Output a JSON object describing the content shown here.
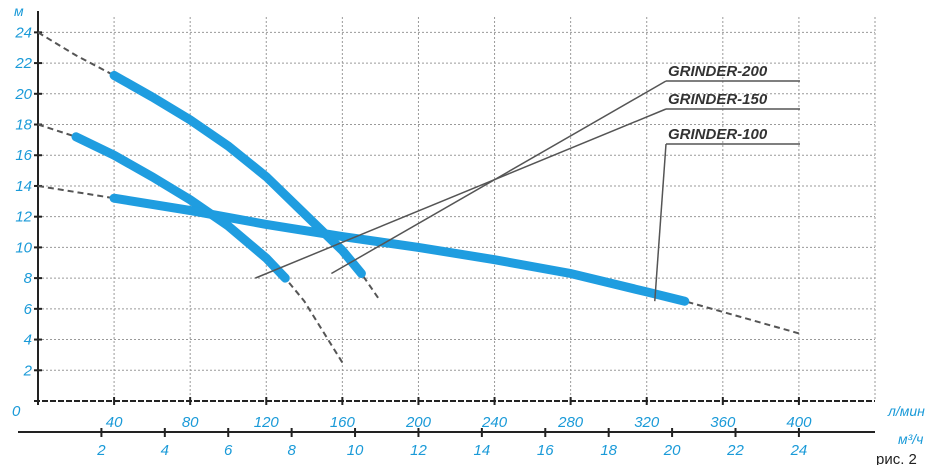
{
  "chart_data": {
    "type": "line",
    "ylabel": "м",
    "xlabel_lmin": "л/мин",
    "xlabel_m3h": "м³/ч",
    "origin_label": "0",
    "figure_caption": "рис. 2",
    "ylim": [
      0,
      25
    ],
    "x_lmin_range": [
      0,
      440
    ],
    "y_ticks": [
      2,
      4,
      6,
      8,
      10,
      12,
      14,
      16,
      18,
      20,
      22,
      24
    ],
    "x_lmin_ticks": [
      40,
      80,
      120,
      160,
      200,
      240,
      280,
      320,
      360,
      400
    ],
    "x_m3h_ticks": [
      2,
      4,
      6,
      8,
      10,
      12,
      14,
      16,
      18,
      20,
      22,
      24
    ],
    "grid": true,
    "series": [
      {
        "name": "GRINDER-200",
        "x": [
          0,
          20,
          40,
          60,
          80,
          100,
          120,
          140,
          160,
          170,
          180
        ],
        "y": [
          24,
          22.5,
          21.2,
          19.8,
          18.3,
          16.6,
          14.6,
          12.2,
          9.8,
          8.3,
          6.5
        ],
        "operating_range": [
          40,
          170
        ]
      },
      {
        "name": "GRINDER-150",
        "x": [
          0,
          20,
          40,
          60,
          80,
          100,
          120,
          130,
          140,
          150,
          160
        ],
        "y": [
          18,
          17.2,
          16.0,
          14.6,
          13.1,
          11.4,
          9.3,
          8.0,
          6.5,
          4.5,
          2.5
        ],
        "operating_range": [
          20,
          130
        ]
      },
      {
        "name": "GRINDER-100",
        "x": [
          0,
          40,
          80,
          120,
          160,
          200,
          240,
          280,
          320,
          340,
          360,
          400
        ],
        "y": [
          14,
          13.2,
          12.4,
          11.5,
          10.7,
          10.0,
          9.2,
          8.3,
          7.1,
          6.5,
          5.8,
          4.4
        ],
        "operating_range": [
          40,
          340
        ]
      }
    ]
  }
}
